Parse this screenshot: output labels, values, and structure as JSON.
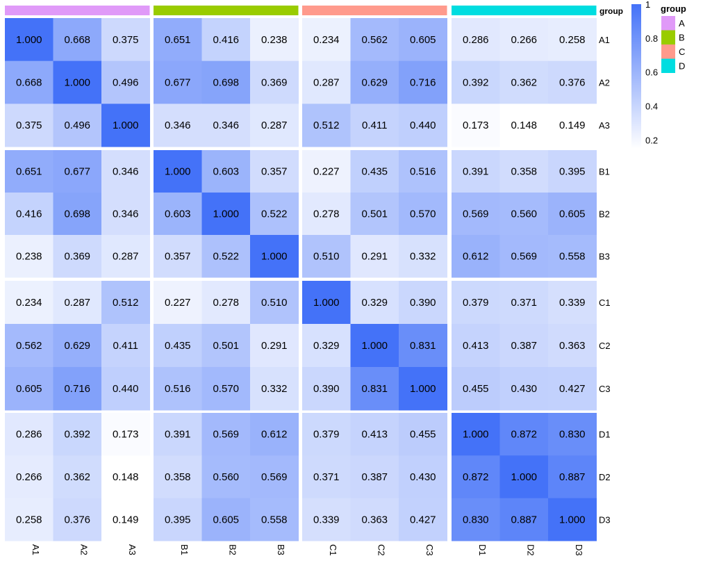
{
  "chart_data": {
    "type": "heatmap",
    "labels": [
      "A1",
      "A2",
      "A3",
      "B1",
      "B2",
      "B3",
      "C1",
      "C2",
      "C3",
      "D1",
      "D2",
      "D3"
    ],
    "groups": [
      "A",
      "A",
      "A",
      "B",
      "B",
      "B",
      "C",
      "C",
      "C",
      "D",
      "D",
      "D"
    ],
    "values": [
      [
        1.0,
        0.668,
        0.375,
        0.651,
        0.416,
        0.238,
        0.234,
        0.562,
        0.605,
        0.286,
        0.266,
        0.258
      ],
      [
        0.668,
        1.0,
        0.496,
        0.677,
        0.698,
        0.369,
        0.287,
        0.629,
        0.716,
        0.392,
        0.362,
        0.376
      ],
      [
        0.375,
        0.496,
        1.0,
        0.346,
        0.346,
        0.287,
        0.512,
        0.411,
        0.44,
        0.173,
        0.148,
        0.149
      ],
      [
        0.651,
        0.677,
        0.346,
        1.0,
        0.603,
        0.357,
        0.227,
        0.435,
        0.516,
        0.391,
        0.358,
        0.395
      ],
      [
        0.416,
        0.698,
        0.346,
        0.603,
        1.0,
        0.522,
        0.278,
        0.501,
        0.57,
        0.569,
        0.56,
        0.605
      ],
      [
        0.238,
        0.369,
        0.287,
        0.357,
        0.522,
        1.0,
        0.51,
        0.291,
        0.332,
        0.612,
        0.569,
        0.558
      ],
      [
        0.234,
        0.287,
        0.512,
        0.227,
        0.278,
        0.51,
        1.0,
        0.329,
        0.39,
        0.379,
        0.371,
        0.339
      ],
      [
        0.562,
        0.629,
        0.411,
        0.435,
        0.501,
        0.291,
        0.329,
        1.0,
        0.831,
        0.413,
        0.387,
        0.363
      ],
      [
        0.605,
        0.716,
        0.44,
        0.516,
        0.57,
        0.332,
        0.39,
        0.831,
        1.0,
        0.455,
        0.43,
        0.427
      ],
      [
        0.286,
        0.392,
        0.173,
        0.391,
        0.569,
        0.612,
        0.379,
        0.413,
        0.455,
        1.0,
        0.872,
        0.83
      ],
      [
        0.266,
        0.362,
        0.148,
        0.358,
        0.56,
        0.569,
        0.371,
        0.387,
        0.43,
        0.872,
        1.0,
        0.887
      ],
      [
        0.258,
        0.376,
        0.149,
        0.395,
        0.605,
        0.558,
        0.339,
        0.363,
        0.427,
        0.83,
        0.887,
        1.0
      ]
    ],
    "annotation_title": "group",
    "group_colors": {
      "A": "#E09AF8",
      "B": "#99CC00",
      "C": "#FF9A8C",
      "D": "#00DDE0"
    },
    "color_scale": {
      "low": "#FFFFFF",
      "high": "#4472F8",
      "min": 0.148,
      "max": 1.0
    },
    "colorbar_ticks": [
      "1",
      "0.8",
      "0.6",
      "0.4",
      "0.2"
    ],
    "legend_title": "group",
    "legend_items": [
      "A",
      "B",
      "C",
      "D"
    ]
  }
}
